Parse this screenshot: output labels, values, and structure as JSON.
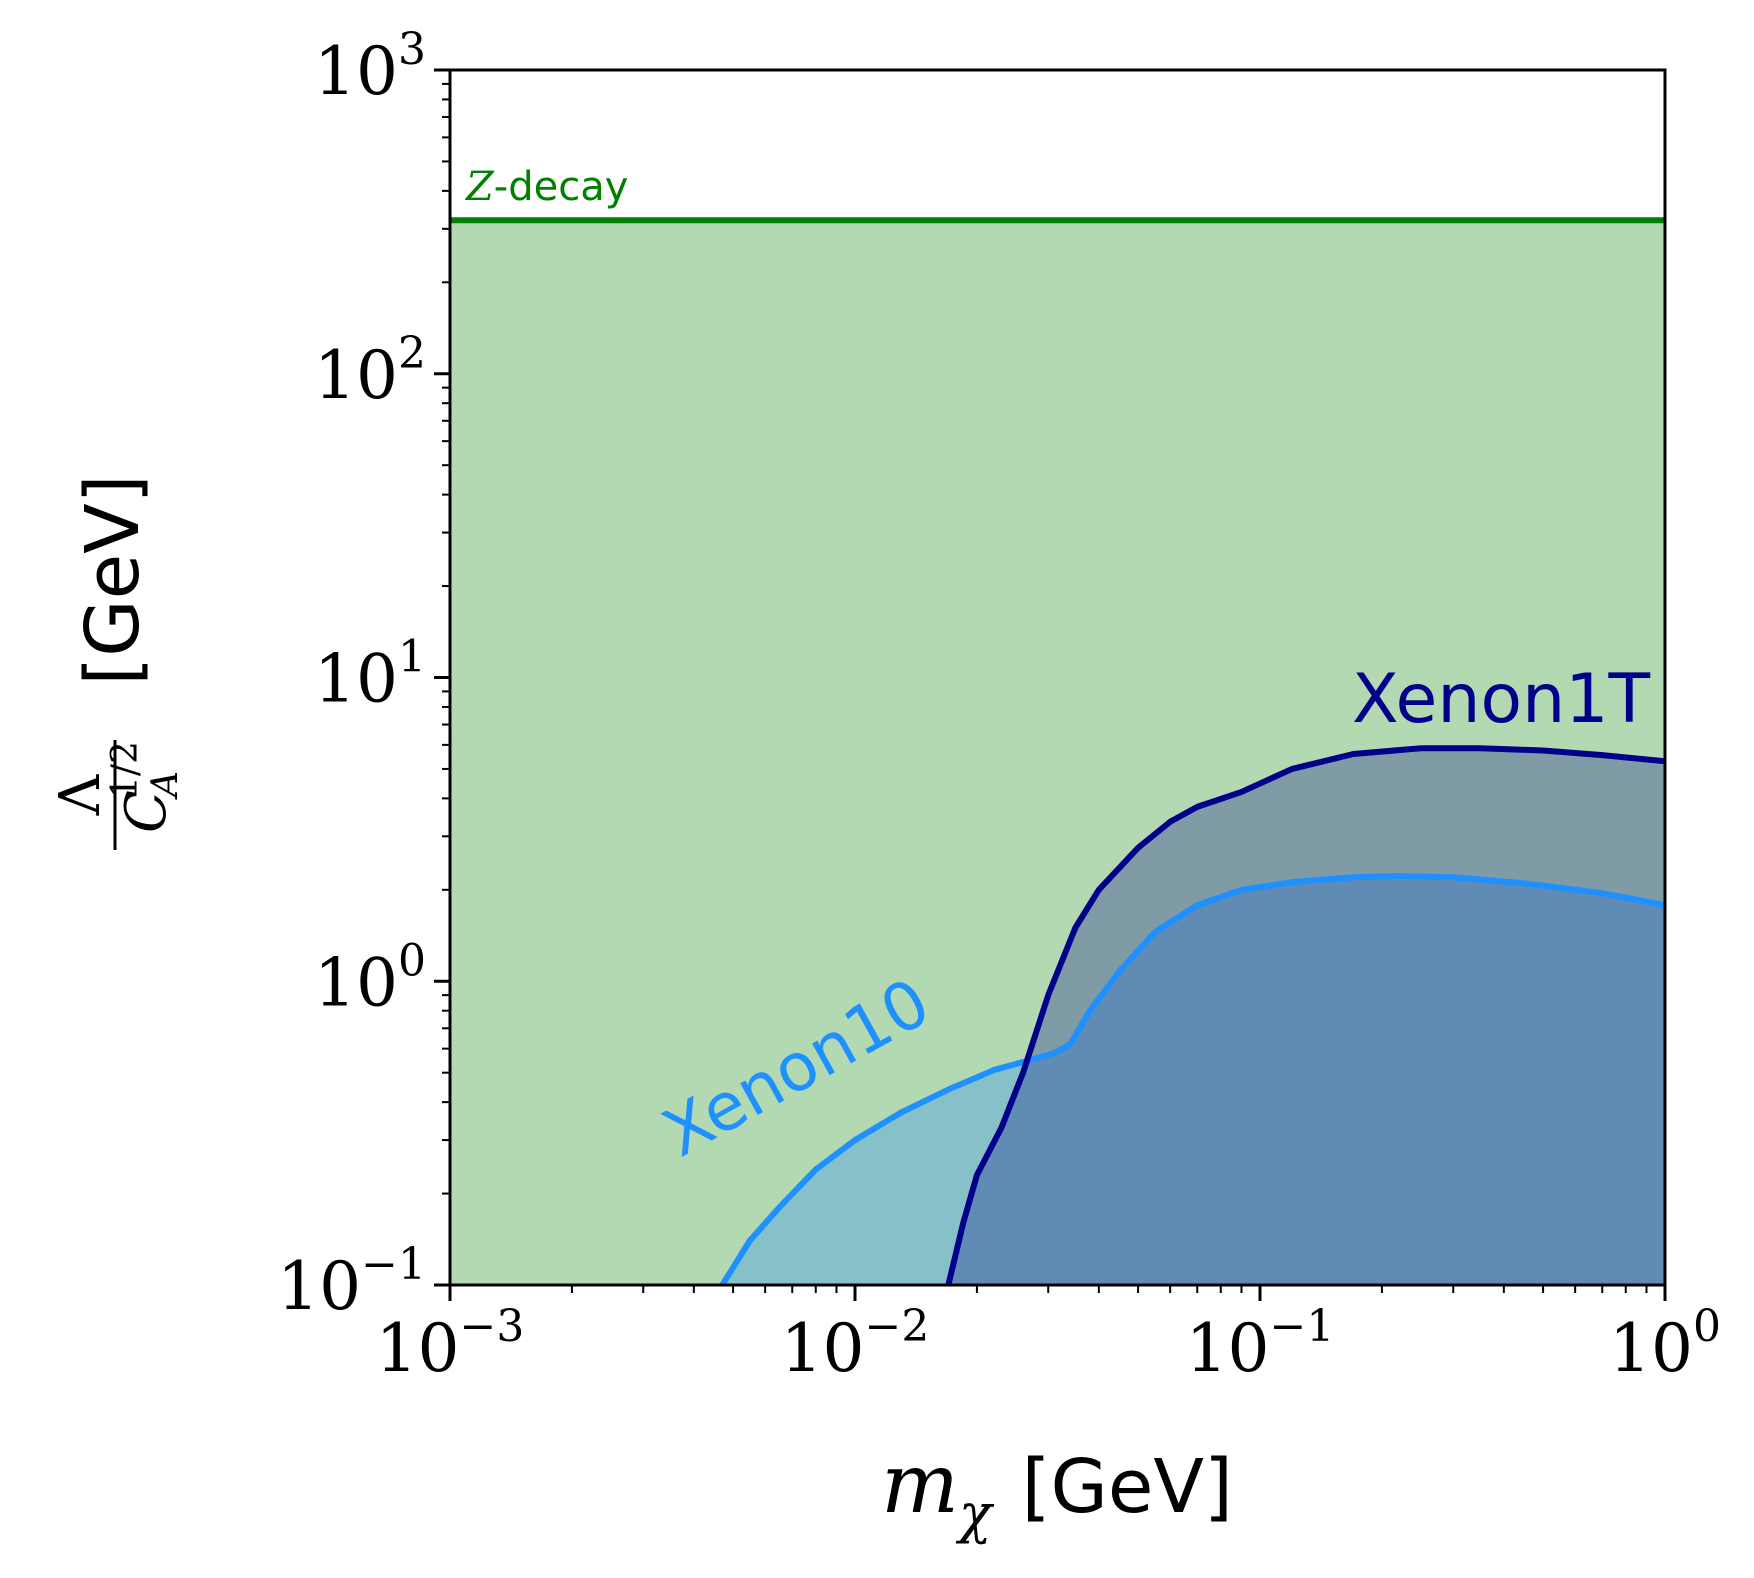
{
  "chart_data": {
    "type": "area",
    "x_scale": "log",
    "y_scale": "log",
    "xlim": [
      0.001,
      1
    ],
    "ylim": [
      0.1,
      1000
    ],
    "grid": false,
    "x_ticks": [
      {
        "base": "10",
        "exp": "−3",
        "value": 0.001
      },
      {
        "base": "10",
        "exp": "−2",
        "value": 0.01
      },
      {
        "base": "10",
        "exp": "−1",
        "value": 0.1
      },
      {
        "base": "10",
        "exp": "0",
        "value": 1
      }
    ],
    "y_ticks": [
      {
        "base": "10",
        "exp": "−1",
        "value": 0.1
      },
      {
        "base": "10",
        "exp": "0",
        "value": 1
      },
      {
        "base": "10",
        "exp": "1",
        "value": 10
      },
      {
        "base": "10",
        "exp": "2",
        "value": 100
      },
      {
        "base": "10",
        "exp": "3",
        "value": 1000
      }
    ],
    "xlabel": {
      "symbol": "m",
      "sub": "χ",
      "unit": "[GeV]"
    },
    "ylabel": {
      "num": "Λ",
      "den": "C",
      "den_sub": "A",
      "den_sup": "1/2",
      "unit": "[GeV]"
    },
    "series": [
      {
        "name": "Z-decay",
        "label_italic": "Z",
        "label_rest": "-decay",
        "kind": "hline",
        "y": 320,
        "color": "#008000",
        "fill": "#b3d9b3"
      },
      {
        "name": "Xenon10",
        "color": "#1e90ff",
        "fill": "#86c1c9",
        "x": [
          0.0047,
          0.0055,
          0.0065,
          0.008,
          0.01,
          0.013,
          0.017,
          0.022,
          0.027,
          0.031,
          0.034,
          0.038,
          0.045,
          0.055,
          0.07,
          0.09,
          0.12,
          0.17,
          0.22,
          0.3,
          0.45,
          0.7,
          1.0
        ],
        "y": [
          0.1,
          0.14,
          0.18,
          0.24,
          0.3,
          0.37,
          0.44,
          0.51,
          0.55,
          0.58,
          0.62,
          0.8,
          1.08,
          1.45,
          1.78,
          2.0,
          2.12,
          2.2,
          2.22,
          2.2,
          2.1,
          1.95,
          1.78
        ]
      },
      {
        "name": "Xenon1T",
        "color": "#00008b",
        "fill": "#5f8bb5",
        "x": [
          0.017,
          0.0185,
          0.02,
          0.023,
          0.026,
          0.03,
          0.035,
          0.04,
          0.05,
          0.06,
          0.07,
          0.09,
          0.12,
          0.17,
          0.25,
          0.35,
          0.5,
          0.7,
          1.0
        ],
        "y": [
          0.1,
          0.16,
          0.23,
          0.33,
          0.5,
          0.9,
          1.5,
          2.0,
          2.75,
          3.35,
          3.75,
          4.2,
          5.0,
          5.6,
          5.85,
          5.85,
          5.75,
          5.55,
          5.3
        ]
      }
    ],
    "overlap_fill": "#7f9ba6",
    "annotations": [
      {
        "text": "Xenon10",
        "color": "#1e90ff"
      },
      {
        "text": "Xenon1T",
        "color": "#00008b"
      }
    ]
  }
}
